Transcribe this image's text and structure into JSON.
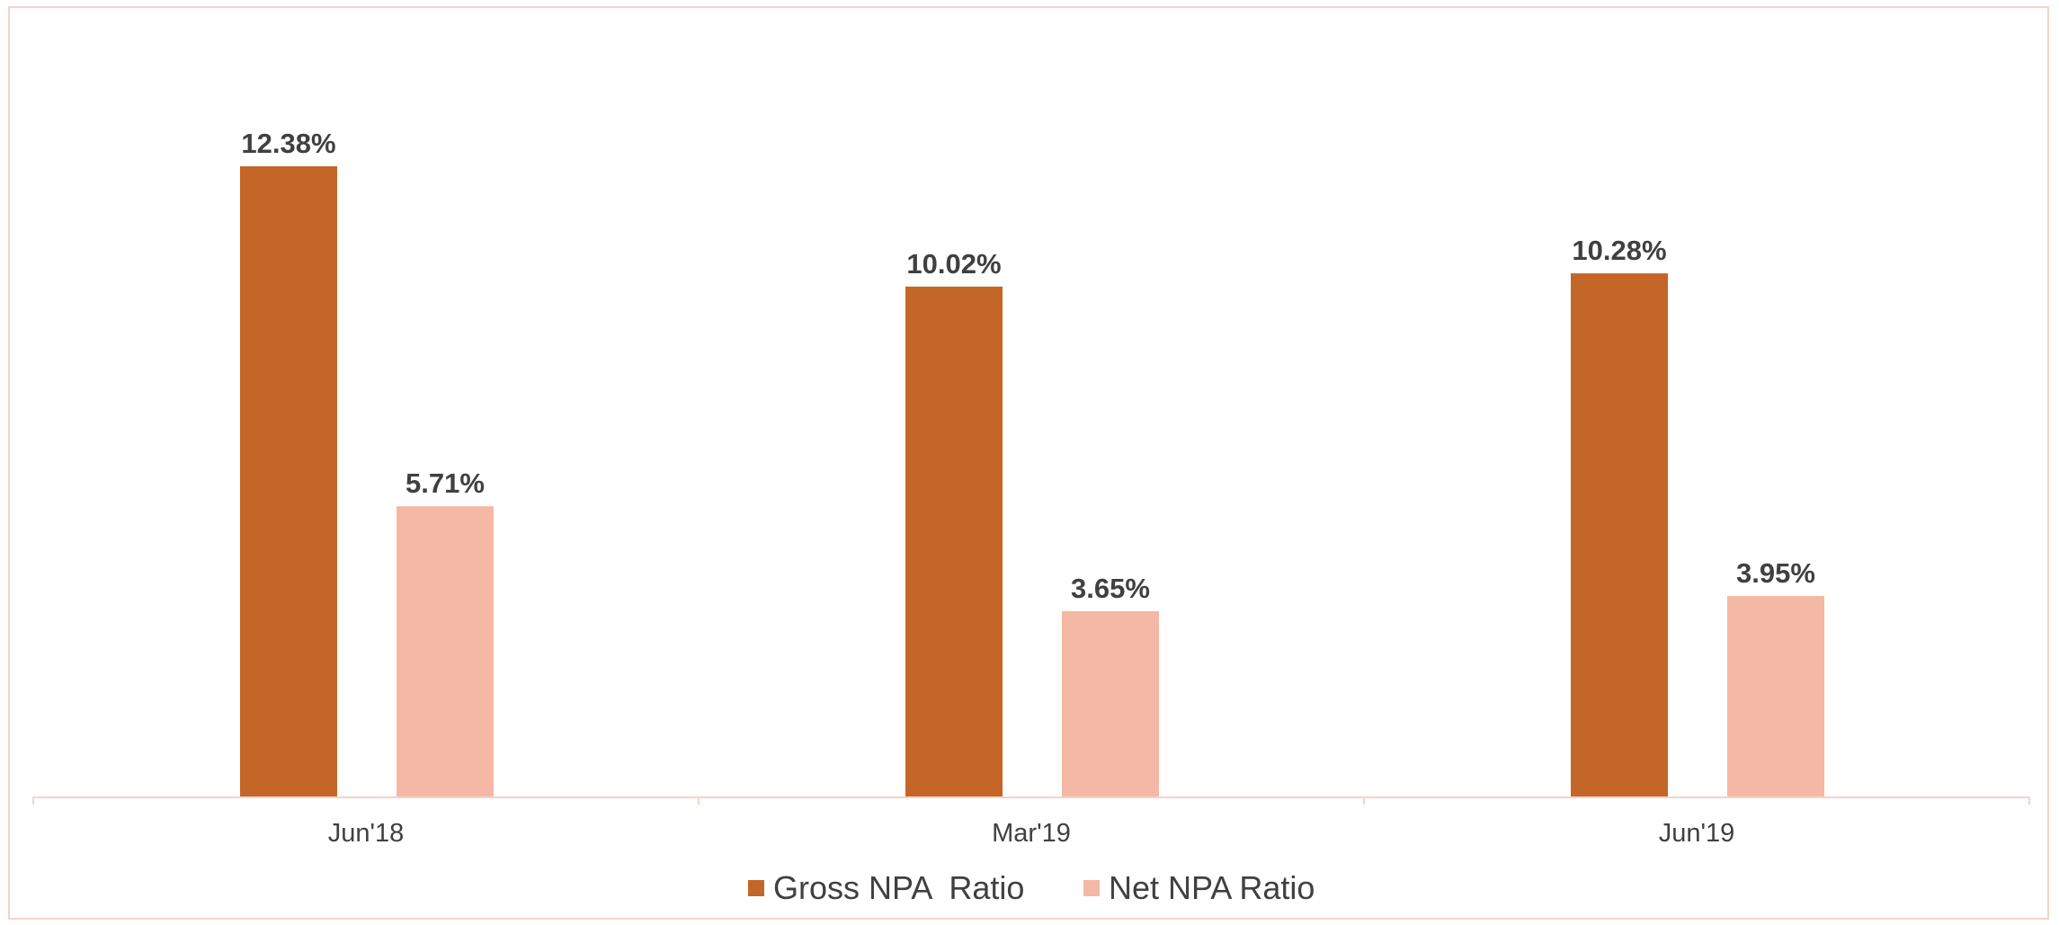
{
  "chart_data": {
    "type": "bar",
    "categories": [
      "Jun'18",
      "Mar'19",
      "Jun'19"
    ],
    "series": [
      {
        "name": "Gross NPA  Ratio",
        "values": [
          12.38,
          10.02,
          10.28
        ],
        "labels": [
          "12.38%",
          "10.02%",
          "10.28%"
        ],
        "color": "#c46628"
      },
      {
        "name": "Net NPA Ratio",
        "values": [
          5.71,
          3.65,
          3.95
        ],
        "labels": [
          "5.71%",
          "3.65%",
          "3.95%"
        ],
        "color": "#f5b8a4"
      }
    ],
    "ylim": [
      0,
      14
    ],
    "grid": false,
    "legend_position": "bottom"
  },
  "colors": {
    "axis": "#f6d3c6",
    "frame_border": "#f6d3c6",
    "text": "#404040"
  }
}
